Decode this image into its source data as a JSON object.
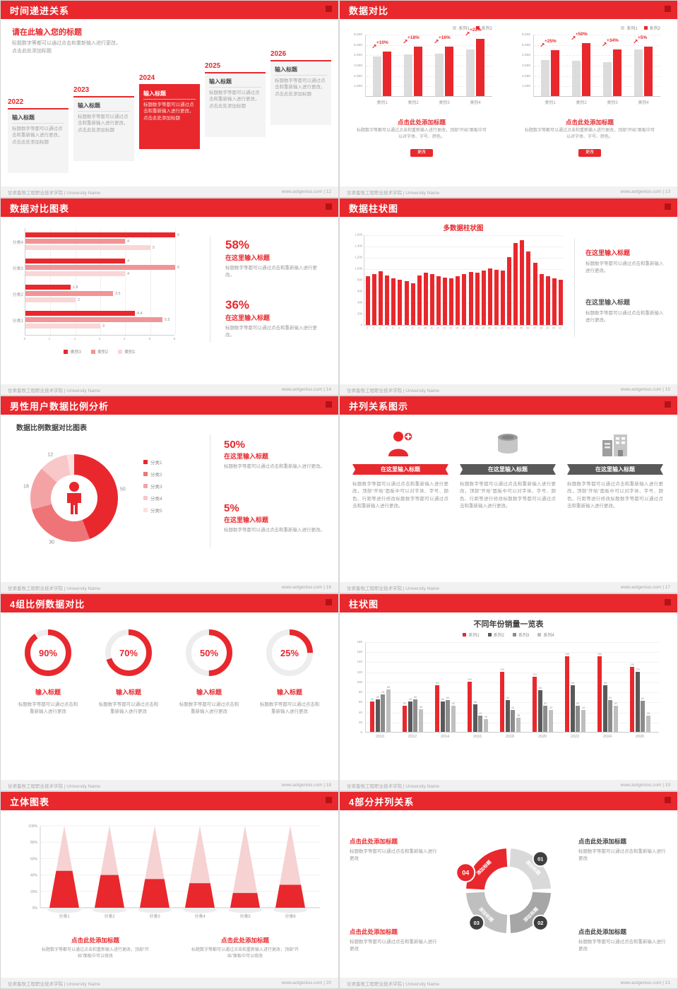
{
  "colors": {
    "red": "#e8282d",
    "dark_red": "#b51216",
    "dark": "#3f3f3f",
    "text_gray": "#9a9a9a"
  },
  "footer": {
    "left": "甘肃畜牧工程职业技术学院 | University Name",
    "site": "www.aotgenius.com"
  },
  "slides": {
    "s12": {
      "page": "12",
      "header": "时间递进关系",
      "intro_title": "请在此输入您的标题",
      "intro_text": "标题数字等都可以通过点击和重新输入进行更改，点击此处添加标题",
      "years": [
        "2022",
        "2023",
        "2024",
        "2025",
        "2026"
      ],
      "highlight": 2,
      "item_title": "输入标题",
      "item_text": "标题数字等都可以通过点击和重新输入进行更改，点击此处添加标题"
    },
    "s13": {
      "page": "13",
      "header": "数据对比",
      "legend": [
        {
          "label": "系列1",
          "color": "#d9d9d9"
        },
        {
          "label": "系列2",
          "color": "#e8282d"
        }
      ],
      "y_ticks": [
        "6,000",
        "5,000",
        "4,000",
        "3,000",
        "2,000",
        "1,000"
      ],
      "y_max": 6000,
      "categories": [
        "类别1",
        "类别2",
        "类别3",
        "类别4"
      ],
      "panels": [
        {
          "pcts": [
            "+10%",
            "+18%",
            "+16%",
            "+22%"
          ],
          "series1": [
            3800,
            4000,
            4100,
            4500
          ],
          "series2": [
            4300,
            4800,
            4800,
            5500
          ]
        },
        {
          "pcts": [
            "+25%",
            "+50%",
            "+34%",
            "+5%"
          ],
          "series1": [
            3500,
            3400,
            3300,
            4500
          ],
          "series2": [
            4400,
            5100,
            4500,
            4800
          ]
        }
      ],
      "caption_title": "点击此处添加标题",
      "caption_text": "标题数字等都可以通过点击和重新输入进行更改，顶部“开始”面板中可以对字体、字号、颜色。",
      "button_label": "更改"
    },
    "s14": {
      "page": "14",
      "header": "数据对比图表",
      "series": [
        {
          "name": "类别3",
          "color": "#e8282d"
        },
        {
          "name": "类别2",
          "color": "#f29496"
        },
        {
          "name": "类别1",
          "color": "#fad6d7"
        }
      ],
      "rows": [
        {
          "cat": "分类4",
          "values": [
            6,
            4,
            5
          ]
        },
        {
          "cat": "分类3",
          "values": [
            4,
            6,
            4
          ]
        },
        {
          "cat": "分类2",
          "values": [
            1.8,
            3.5,
            2
          ]
        },
        {
          "cat": "分类1",
          "values": [
            4.4,
            5.5,
            3
          ]
        }
      ],
      "x_ticks": [
        "0",
        "1",
        "2",
        "3",
        "4",
        "5",
        "6"
      ],
      "x_max": 6,
      "stats": [
        {
          "pct": "58%",
          "title": "在这里输入标题",
          "text": "标题数字等都可以通过点击和重新输入进行更改。"
        },
        {
          "pct": "36%",
          "title": "在这里输入标题",
          "text": "标题数字等都可以通过点击和重新输入进行更改。"
        }
      ]
    },
    "s15": {
      "page": "15",
      "header": "数据柱状图",
      "chart_title": "多数据柱状图",
      "values": [
        860,
        900,
        950,
        880,
        830,
        800,
        780,
        740,
        880,
        920,
        900,
        860,
        840,
        820,
        860,
        900,
        940,
        920,
        960,
        1000,
        980,
        960,
        1200,
        1450,
        1500,
        1300,
        1100,
        900,
        860,
        830,
        800
      ],
      "x_labels": [
        "1",
        "2",
        "3",
        "4",
        "5",
        "6",
        "7",
        "8",
        "9",
        "10",
        "11",
        "12",
        "13",
        "14",
        "15",
        "16",
        "17",
        "18",
        "19",
        "20",
        "21",
        "22",
        "23",
        "24",
        "25",
        "26",
        "27",
        "28",
        "29",
        "30",
        "31"
      ],
      "y_ticks": [
        "1,600",
        "1,400",
        "1,200",
        "1,000",
        "800",
        "600",
        "400",
        "200",
        "0"
      ],
      "y_max": 1600,
      "stats": [
        {
          "title": "在这里输入标题",
          "accent": true,
          "text": "标题数字等都可以通过点击和重新输入进行更改。"
        },
        {
          "title": "在这里输入标题",
          "accent": false,
          "text": "标题数字等都可以通过点击和重新输入进行更改。"
        }
      ]
    },
    "s16": {
      "page": "16",
      "header": "男性用户数据比例分析",
      "chart_title": "数据比例数据对比图表",
      "segments": [
        {
          "label": "分类1",
          "value": 50,
          "color": "#e8282d"
        },
        {
          "label": "分类2",
          "value": 30,
          "color": "#ef7477"
        },
        {
          "label": "分类3",
          "value": 18,
          "color": "#f4a3a5"
        },
        {
          "label": "分类4",
          "value": 12,
          "color": "#f8c7c8"
        },
        {
          "label": "分类5",
          "value": 3,
          "color": "#fbe0e1"
        }
      ],
      "stats": [
        {
          "pct": "50%",
          "title": "在这里输入标题",
          "text": "标题数字等都可以通过点击和重新输入进行更改。"
        },
        {
          "pct": "5%",
          "title": "在这里输入标题",
          "text": "标题数字等都可以通过点击和重新输入进行更改。"
        }
      ]
    },
    "s17": {
      "page": "17",
      "header": "并列关系图示",
      "cards": [
        {
          "icon": "nurse-icon",
          "banner": "在这里输入标题",
          "accent": true,
          "text": "标题数字等都可以通过点击和重新输入进行更改，顶部“开始”面板中可以对字体、字号、颜色、行距等进行修改标题数字等都可以通过点击和重新输入进行更改。"
        },
        {
          "icon": "container-icon",
          "banner": "在这里输入标题",
          "accent": false,
          "text": "标题数字等都可以通过点击和重新输入进行更改，顶部“开始”面板中可以对字体、字号、颜色、行距等进行修改标题数字等都可以通过点击和重新输入进行更改。"
        },
        {
          "icon": "building-icon",
          "banner": "在这里输入标题",
          "accent": false,
          "text": "标题数字等都可以通过点击和重新输入进行更改，顶部“开始”面板中可以对字体、字号、颜色、行距等进行修改标题数字等都可以通过点击和重新输入进行更改。"
        }
      ]
    },
    "s18": {
      "page": "18",
      "header": "4组比例数据对比",
      "rings": [
        {
          "pct": 90,
          "label": "90%"
        },
        {
          "pct": 70,
          "label": "70%"
        },
        {
          "pct": 50,
          "label": "50%"
        },
        {
          "pct": 25,
          "label": "25%"
        }
      ],
      "item_title": "输入标题",
      "item_text": "标题数字等都可以通过点击和重新输入进行更改"
    },
    "s19": {
      "page": "19",
      "header": "柱状图",
      "chart_title": "不同年份销量一览表",
      "legend": [
        {
          "label": "系列1",
          "color": "#e8282d"
        },
        {
          "label": "系列2",
          "color": "#595959"
        },
        {
          "label": "系列3",
          "color": "#8c8c8c"
        },
        {
          "label": "系列4",
          "color": "#bfbfbf"
        }
      ],
      "categories": [
        "2010",
        "2012",
        "2014",
        "2016",
        "2018",
        "2020",
        "2022",
        "2024",
        "2026"
      ],
      "series": [
        {
          "name": "系列1",
          "values": [
            60,
            52,
            93,
            100,
            120,
            110,
            150,
            150,
            130
          ]
        },
        {
          "name": "系列2",
          "values": [
            65,
            60,
            60,
            55,
            63,
            83,
            93,
            93,
            120
          ]
        },
        {
          "name": "系列3",
          "values": [
            75,
            65,
            63,
            33,
            43,
            52,
            52,
            63,
            62
          ]
        },
        {
          "name": "系列4",
          "values": [
            85,
            45,
            52,
            26,
            28,
            43,
            43,
            52,
            33
          ]
        }
      ],
      "y_max": 180,
      "y_step": 20
    },
    "s20": {
      "page": "20",
      "header": "立体图表",
      "categories": [
        "分类1",
        "分类2",
        "分类3",
        "分类4",
        "分类5",
        "分类6"
      ],
      "values": [
        45,
        40,
        35,
        30,
        18,
        28
      ],
      "y_ticks": [
        "100%",
        "80%",
        "60%",
        "40%",
        "20%",
        "0%"
      ],
      "captions": [
        {
          "title": "点击此处添加标题",
          "text": "标题数字等都可以通过点击和重新输入进行更改，顶部“开始”面板中可以修改"
        },
        {
          "title": "点击此处添加标题",
          "text": "标题数字等都可以通过点击和重新输入进行更改，顶部“开始”面板中可以修改"
        }
      ]
    },
    "s21": {
      "page": "21",
      "header": "4部分并列关系",
      "segment_label": "添加标题",
      "numbers": [
        "01",
        "02",
        "03",
        "04"
      ],
      "blocks": [
        {
          "title": "点击此处添加标题",
          "text": "标题数字等都可以通过点击和重新输入进行更改",
          "accent": true
        },
        {
          "title": "点击此处添加标题",
          "text": "标题数字等都可以通过点击和重新输入进行更改",
          "accent": false
        },
        {
          "title": "点击此处添加标题",
          "text": "标题数字等都可以通过点击和重新输入进行更改",
          "accent": true
        },
        {
          "title": "点击此处添加标题",
          "text": "标题数字等都可以通过点击和重新输入进行更改",
          "accent": false
        }
      ]
    }
  }
}
